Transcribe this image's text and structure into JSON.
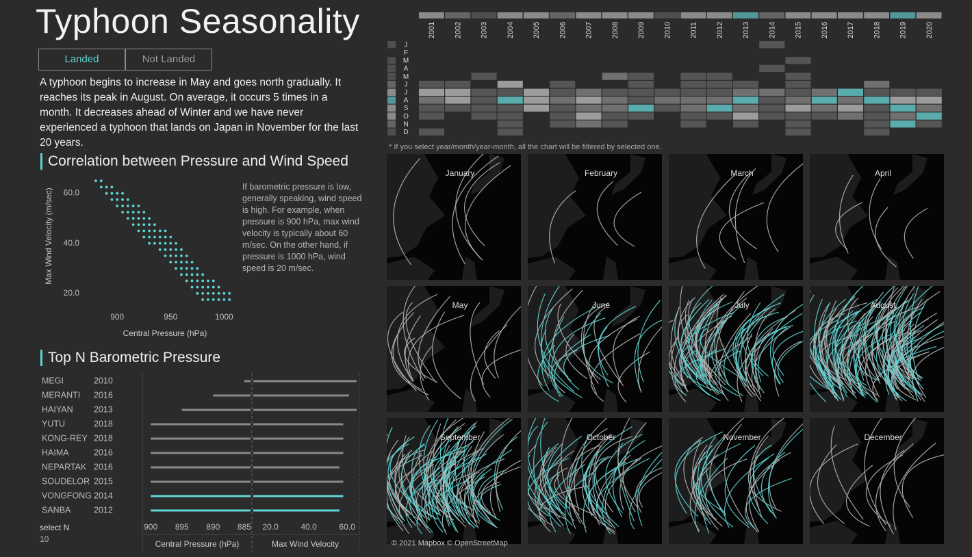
{
  "header": {
    "title": "Typhoon Seasonality",
    "toggle": [
      "Landed",
      "Not Landed"
    ],
    "description": "A typhoon begins to increase in May and goes north gradually. It reaches its peak in August. On average, it occurs 5 times in a month. It decreases ahead of Winter and we have never experienced a typhoon that lands on Japan in November for the last 20 years."
  },
  "controls": {
    "label": "select N",
    "value": 10
  },
  "maps": {
    "months": [
      "January",
      "February",
      "March",
      "April",
      "May",
      "June",
      "July",
      "August",
      "September",
      "October",
      "November",
      "December"
    ],
    "attribution": "© 2021 Mapbox © OpenStreetMap"
  },
  "chart_data": [
    {
      "type": "scatter",
      "title": "Correlation between Pressure and Wind Speed",
      "x_label": "Central Pressure (hPa)",
      "y_label": "Max Wind Velocity (m/sec)",
      "annotation": "If barometric pressure is low, generally speaking, wind speed is high. For example, when pressure is 900 hPa, max wind velocity is typically about 60 m/sec. On the other hand, if pressure is 1000 hPa, wind speed is 20 m/sec.",
      "color": "#5fd6d6",
      "xlim": [
        880,
        1010
      ],
      "ylim": [
        15,
        67
      ],
      "xticks": [
        900,
        950,
        1000
      ],
      "yticks": [
        {
          "value": 20,
          "label": "20.0"
        },
        {
          "value": 40,
          "label": "40.0"
        },
        {
          "value": 60,
          "label": "60.0"
        }
      ],
      "x": [
        880,
        885,
        885,
        890,
        890,
        895,
        895,
        895,
        900,
        900,
        900,
        905,
        905,
        905,
        905,
        910,
        910,
        910,
        910,
        915,
        915,
        915,
        915,
        920,
        920,
        920,
        920,
        920,
        925,
        925,
        925,
        925,
        925,
        930,
        930,
        930,
        930,
        930,
        935,
        935,
        935,
        935,
        940,
        940,
        940,
        940,
        945,
        945,
        945,
        945,
        945,
        950,
        950,
        950,
        950,
        950,
        955,
        955,
        955,
        955,
        955,
        960,
        960,
        960,
        960,
        960,
        965,
        965,
        965,
        965,
        965,
        970,
        970,
        970,
        970,
        970,
        975,
        975,
        975,
        975,
        975,
        980,
        980,
        980,
        980,
        980,
        985,
        985,
        985,
        985,
        990,
        990,
        990,
        990,
        995,
        995,
        995,
        1000,
        1000,
        1005,
        1005
      ],
      "y": [
        65,
        62.5,
        65,
        60,
        62.5,
        57.5,
        60,
        62.5,
        55,
        57.5,
        60,
        52.5,
        55,
        57.5,
        60,
        50,
        52.5,
        55,
        57.5,
        47.5,
        50,
        52.5,
        55,
        45,
        47.5,
        50,
        52.5,
        55,
        42.5,
        45,
        47.5,
        50,
        52.5,
        40,
        42.5,
        45,
        47.5,
        50,
        40,
        42.5,
        45,
        47.5,
        37.5,
        40,
        42.5,
        45,
        35,
        37.5,
        40,
        42.5,
        45,
        32.5,
        35,
        37.5,
        40,
        42.5,
        30,
        32.5,
        35,
        37.5,
        40,
        27.5,
        30,
        32.5,
        35,
        37.5,
        25,
        27.5,
        30,
        32.5,
        35,
        22.5,
        25,
        27.5,
        30,
        32.5,
        20,
        22.5,
        25,
        27.5,
        30,
        17.5,
        20,
        22.5,
        25,
        27.5,
        17.5,
        20,
        22.5,
        25,
        17.5,
        20,
        22.5,
        25,
        17.5,
        20,
        22.5,
        17.5,
        20,
        17.5,
        20
      ]
    },
    {
      "type": "heatmap",
      "note": "* If you select year/month/year-month, all the chart will be filtered by selected one.",
      "x": [
        "2001",
        "2002",
        "2003",
        "2004",
        "2005",
        "2006",
        "2007",
        "2008",
        "2009",
        "2010",
        "2011",
        "2012",
        "2013",
        "2014",
        "2015",
        "2016",
        "2017",
        "2018",
        "2019",
        "2020"
      ],
      "y": [
        "J",
        "F",
        "M",
        "A",
        "M",
        "J",
        "J",
        "A",
        "S",
        "O",
        "N",
        "D"
      ],
      "colors": [
        "#555555",
        "#707070",
        "#9c9c9c",
        "#5aacac"
      ],
      "values": [
        [
          null,
          null,
          null,
          null,
          null,
          null,
          null,
          null,
          null,
          null,
          null,
          null,
          null,
          1,
          null,
          null,
          null,
          null,
          null,
          null
        ],
        [
          null,
          null,
          null,
          null,
          null,
          null,
          null,
          null,
          null,
          null,
          null,
          null,
          null,
          null,
          null,
          null,
          null,
          null,
          null,
          null
        ],
        [
          null,
          null,
          null,
          null,
          null,
          null,
          null,
          null,
          null,
          null,
          null,
          null,
          null,
          null,
          1,
          null,
          null,
          null,
          null,
          null
        ],
        [
          null,
          null,
          null,
          null,
          null,
          null,
          null,
          null,
          null,
          null,
          null,
          null,
          null,
          1,
          null,
          null,
          null,
          null,
          null,
          null
        ],
        [
          null,
          null,
          1,
          null,
          null,
          null,
          null,
          2,
          1,
          null,
          1,
          1,
          null,
          null,
          1,
          null,
          null,
          null,
          null,
          null
        ],
        [
          1,
          1,
          null,
          3,
          null,
          1,
          null,
          null,
          1,
          null,
          1,
          1,
          1,
          null,
          1,
          null,
          null,
          2,
          null,
          null
        ],
        [
          3,
          3,
          1,
          1,
          3,
          1,
          2,
          1,
          1,
          1,
          1,
          1,
          2,
          2,
          1,
          2,
          4,
          1,
          1,
          1
        ],
        [
          2,
          3,
          1,
          4,
          3,
          2,
          3,
          2,
          1,
          2,
          2,
          2,
          4,
          1,
          2,
          4,
          2,
          4,
          3,
          3
        ],
        [
          1,
          1,
          1,
          1,
          3,
          1,
          2,
          2,
          4,
          1,
          2,
          4,
          2,
          1,
          3,
          2,
          3,
          1,
          4,
          2
        ],
        [
          1,
          null,
          1,
          1,
          null,
          1,
          3,
          1,
          1,
          null,
          1,
          1,
          3,
          1,
          1,
          1,
          2,
          1,
          2,
          4
        ],
        [
          null,
          null,
          null,
          1,
          null,
          1,
          2,
          1,
          null,
          null,
          1,
          null,
          1,
          null,
          1,
          null,
          null,
          1,
          4,
          1
        ],
        [
          1,
          null,
          null,
          1,
          null,
          null,
          null,
          null,
          null,
          null,
          null,
          null,
          null,
          null,
          1,
          null,
          null,
          1,
          null,
          null
        ]
      ]
    },
    {
      "type": "bar",
      "orientation": "horizontal",
      "title": "Top N Barometric Pressure",
      "categories": [
        "MEGI",
        "MERANTI",
        "HAIYAN",
        "YUTU",
        "KONG-REY",
        "HAIMA",
        "NEPARTAK",
        "SOUDELOR",
        "VONGFONG",
        "SANBA"
      ],
      "years": [
        "2010",
        "2016",
        "2013",
        "2018",
        "2018",
        "2016",
        "2016",
        "2015",
        "2014",
        "2012"
      ],
      "colors": [
        "#8a8a8a",
        "#8a8a8a",
        "#8a8a8a",
        "#8a8a8a",
        "#8a8a8a",
        "#8a8a8a",
        "#8a8a8a",
        "#8a8a8a",
        "#5fd6d6",
        "#5fd6d6"
      ],
      "series": [
        {
          "name": "Central Pressure (hPa)",
          "values": [
            885,
            890,
            895,
            900,
            900,
            900,
            900,
            900,
            900,
            900
          ],
          "xlim": [
            901,
            884
          ],
          "xticks": [
            900,
            895,
            890,
            885
          ]
        },
        {
          "name": "Max Wind Velocity",
          "values": [
            65,
            61,
            65,
            58,
            58,
            58,
            56,
            58,
            58,
            56
          ],
          "xlim": [
            11,
            66.4
          ],
          "xticks": [
            {
              "value": 20,
              "label": "20.0"
            },
            {
              "value": 40,
              "label": "40.0"
            },
            {
              "value": 60,
              "label": "60.0"
            }
          ]
        }
      ]
    }
  ]
}
